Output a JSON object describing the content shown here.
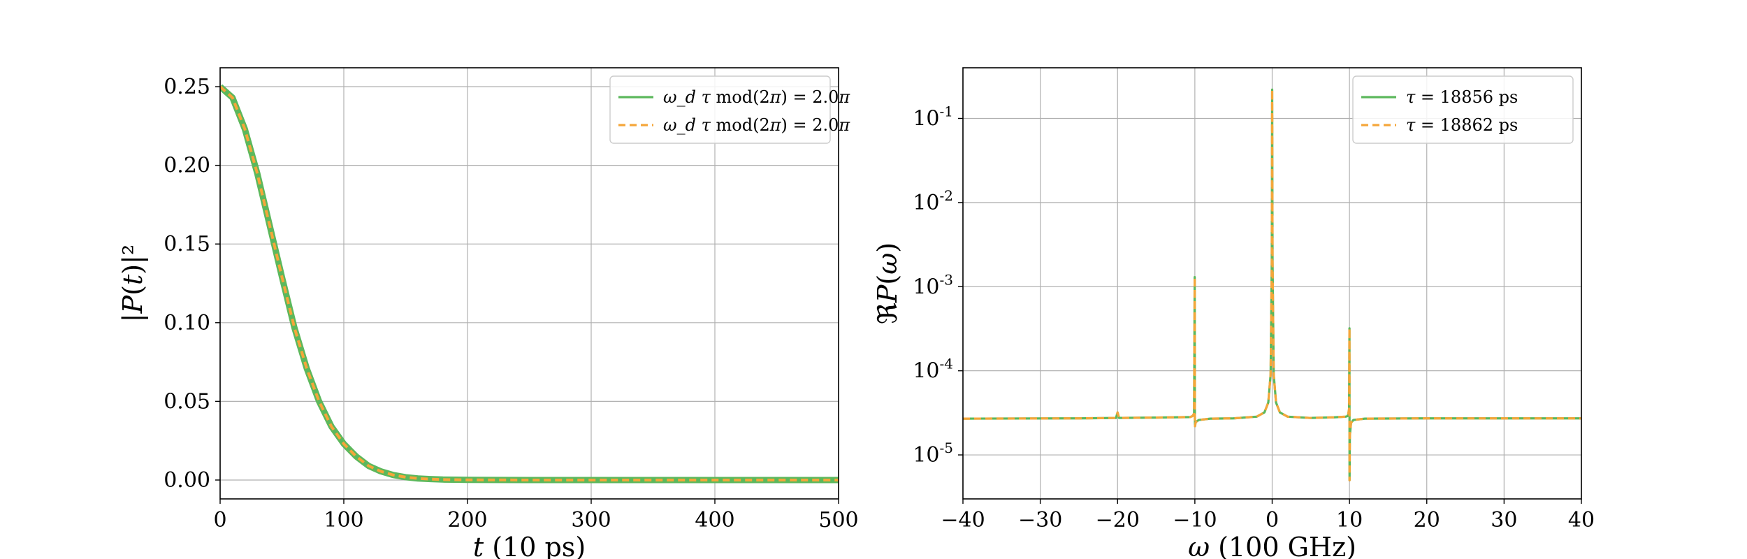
{
  "chart_data": [
    {
      "type": "line",
      "xlabel": "t (10 ps)",
      "ylabel": "|P(t)|²",
      "xlim": [
        0,
        500
      ],
      "ylim": [
        -0.012,
        0.262
      ],
      "xticks": [
        0,
        100,
        200,
        300,
        400,
        500
      ],
      "yticks": [
        0.0,
        0.05,
        0.1,
        0.15,
        0.2,
        0.25
      ],
      "ytick_labels": [
        "0.00",
        "0.05",
        "0.10",
        "0.15",
        "0.20",
        "0.25"
      ],
      "grid": true,
      "legend_position": "top-right",
      "series": [
        {
          "name": "ω_d τ mod(2π) = 2.0π",
          "color": "#5cb85c",
          "style": "solid",
          "x": [
            0,
            10,
            20,
            30,
            40,
            50,
            60,
            70,
            80,
            90,
            100,
            110,
            120,
            130,
            140,
            150,
            160,
            170,
            180,
            190,
            200,
            220,
            250,
            300,
            400,
            500
          ],
          "y": [
            0.25,
            0.243,
            0.223,
            0.195,
            0.162,
            0.129,
            0.097,
            0.071,
            0.05,
            0.034,
            0.023,
            0.015,
            0.009,
            0.0055,
            0.0032,
            0.0018,
            0.001,
            0.0006,
            0.0003,
            0.0002,
            0.0001,
            5e-05,
            0.0,
            0.0,
            0.0,
            0.0
          ]
        },
        {
          "name": "ω_d τ mod(2π) = 2.0π",
          "color": "#f5a63a",
          "style": "dashed",
          "x": [
            0,
            10,
            20,
            30,
            40,
            50,
            60,
            70,
            80,
            90,
            100,
            110,
            120,
            130,
            140,
            150,
            160,
            170,
            180,
            190,
            200,
            220,
            250,
            300,
            400,
            500
          ],
          "y": [
            0.25,
            0.243,
            0.223,
            0.195,
            0.162,
            0.129,
            0.097,
            0.071,
            0.05,
            0.034,
            0.023,
            0.015,
            0.009,
            0.0055,
            0.0032,
            0.0018,
            0.001,
            0.0006,
            0.0003,
            0.0002,
            0.0001,
            5e-05,
            0.0,
            0.0,
            0.0,
            0.0
          ]
        }
      ]
    },
    {
      "type": "line",
      "xlabel": "ω (100 GHz)",
      "ylabel": "ℜP(ω)",
      "xlim": [
        -40,
        40
      ],
      "ylim": [
        3e-06,
        0.4
      ],
      "yscale": "log",
      "xticks": [
        -40,
        -30,
        -20,
        -10,
        0,
        10,
        20,
        30,
        40
      ],
      "xtick_labels": [
        "−40",
        "−30",
        "−20",
        "−10",
        "0",
        "10",
        "20",
        "30",
        "40"
      ],
      "yticks": [
        1e-05,
        0.0001,
        0.001,
        0.01,
        0.1
      ],
      "ytick_labels": [
        {
          "base": "10",
          "exp": "-5"
        },
        {
          "base": "10",
          "exp": "-4"
        },
        {
          "base": "10",
          "exp": "-3"
        },
        {
          "base": "10",
          "exp": "-2"
        },
        {
          "base": "10",
          "exp": "-1"
        }
      ],
      "grid": true,
      "legend_position": "top-right",
      "series": [
        {
          "name": "τ = 18856 ps",
          "color": "#5cb85c",
          "style": "solid",
          "x": [
            -40,
            -25,
            -20.2,
            -20,
            -19.8,
            -15,
            -10.6,
            -10.3,
            -10.1,
            -10.02,
            -10,
            -9.98,
            -9.9,
            -9.5,
            -8,
            -5,
            -2,
            -1,
            -0.5,
            -0.2,
            -0.05,
            0,
            0.05,
            0.2,
            0.5,
            1,
            2,
            5,
            8,
            9.5,
            9.8,
            9.95,
            10,
            10.01,
            10.05,
            10.2,
            10.5,
            12,
            20,
            40
          ],
          "y": [
            2.7e-05,
            2.72e-05,
            2.75e-05,
            3.2e-05,
            2.75e-05,
            2.78e-05,
            2.82e-05,
            2.9e-05,
            3.1e-05,
            0.0013,
            3e-05,
            2.2e-05,
            2.45e-05,
            2.6e-05,
            2.7e-05,
            2.72e-05,
            2.85e-05,
            3.2e-05,
            4.2e-05,
            9e-05,
            0.002,
            0.22,
            0.002,
            9e-05,
            4.2e-05,
            3.2e-05,
            2.85e-05,
            2.75e-05,
            2.8e-05,
            2.85e-05,
            2.9e-05,
            3.5e-05,
            0.00032,
            5e-06,
            1.7e-05,
            2.4e-05,
            2.6e-05,
            2.7e-05,
            2.72e-05,
            2.72e-05
          ]
        },
        {
          "name": "τ = 18862 ps",
          "color": "#f5a63a",
          "style": "dashed",
          "x": [
            -40,
            -25,
            -20.2,
            -20,
            -19.8,
            -15,
            -10.6,
            -10.3,
            -10.1,
            -10.02,
            -10,
            -9.98,
            -9.9,
            -9.5,
            -8,
            -5,
            -2,
            -1,
            -0.5,
            -0.2,
            -0.05,
            0,
            0.05,
            0.2,
            0.5,
            1,
            2,
            5,
            8,
            9.5,
            9.8,
            9.95,
            10,
            10.01,
            10.05,
            10.2,
            10.5,
            12,
            20,
            40
          ],
          "y": [
            2.7e-05,
            2.72e-05,
            2.75e-05,
            3.2e-05,
            2.75e-05,
            2.78e-05,
            2.82e-05,
            2.9e-05,
            3.1e-05,
            0.0013,
            3e-05,
            2.2e-05,
            2.45e-05,
            2.6e-05,
            2.7e-05,
            2.72e-05,
            2.85e-05,
            3.2e-05,
            4.2e-05,
            9e-05,
            0.002,
            0.22,
            0.002,
            9e-05,
            4.2e-05,
            3.2e-05,
            2.85e-05,
            2.75e-05,
            2.8e-05,
            2.85e-05,
            2.9e-05,
            3.5e-05,
            0.00032,
            5e-06,
            1.7e-05,
            2.4e-05,
            2.6e-05,
            2.7e-05,
            2.72e-05,
            2.72e-05
          ]
        }
      ]
    }
  ]
}
